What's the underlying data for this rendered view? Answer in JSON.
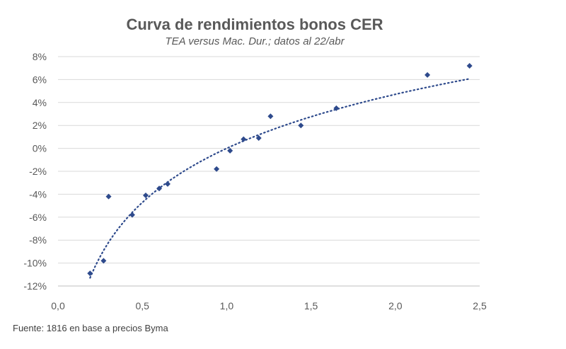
{
  "chart_data": {
    "type": "scatter",
    "title": "Curva de rendimientos bonos CER",
    "subtitle": "TEA versus Mac. Dur.; datos al 22/abr",
    "xlabel": "",
    "ylabel": "",
    "xlim": [
      0,
      2.5
    ],
    "ylim": [
      -12,
      8
    ],
    "x_ticks": [
      0,
      0.5,
      1.0,
      1.5,
      2.0,
      2.5
    ],
    "x_tick_labels": [
      "0,0",
      "0,5",
      "1,0",
      "1,5",
      "2,0",
      "2,5"
    ],
    "y_ticks": [
      8,
      6,
      4,
      2,
      0,
      -2,
      -4,
      -6,
      -8,
      -10,
      -12
    ],
    "y_tick_labels": [
      "8%",
      "6%",
      "4%",
      "2%",
      "0%",
      "-2%",
      "-4%",
      "-6%",
      "-8%",
      "-10%",
      "-12%"
    ],
    "grid": "horizontal",
    "legend": "none",
    "series": [
      {
        "x": [
          0.19,
          0.27,
          0.3,
          0.44,
          0.52,
          0.6,
          0.65,
          0.94,
          1.02,
          1.1,
          1.19,
          1.26,
          1.44,
          1.65,
          2.19,
          2.44
        ],
        "y": [
          -10.9,
          -9.8,
          -4.2,
          -5.8,
          -4.1,
          -3.5,
          -3.1,
          -1.8,
          -0.2,
          0.8,
          0.9,
          2.8,
          2.0,
          3.5,
          6.4,
          7.2
        ],
        "color": "#2E4A8C"
      }
    ],
    "trendline": {
      "type": "logarithmic",
      "a": 0.0,
      "b": 6.8,
      "x_range": [
        0.19,
        2.44
      ],
      "style": "dotted",
      "color": "#2E4A8C"
    }
  },
  "footer": {
    "source": "Fuente: 1816 en base a precios Byma"
  }
}
